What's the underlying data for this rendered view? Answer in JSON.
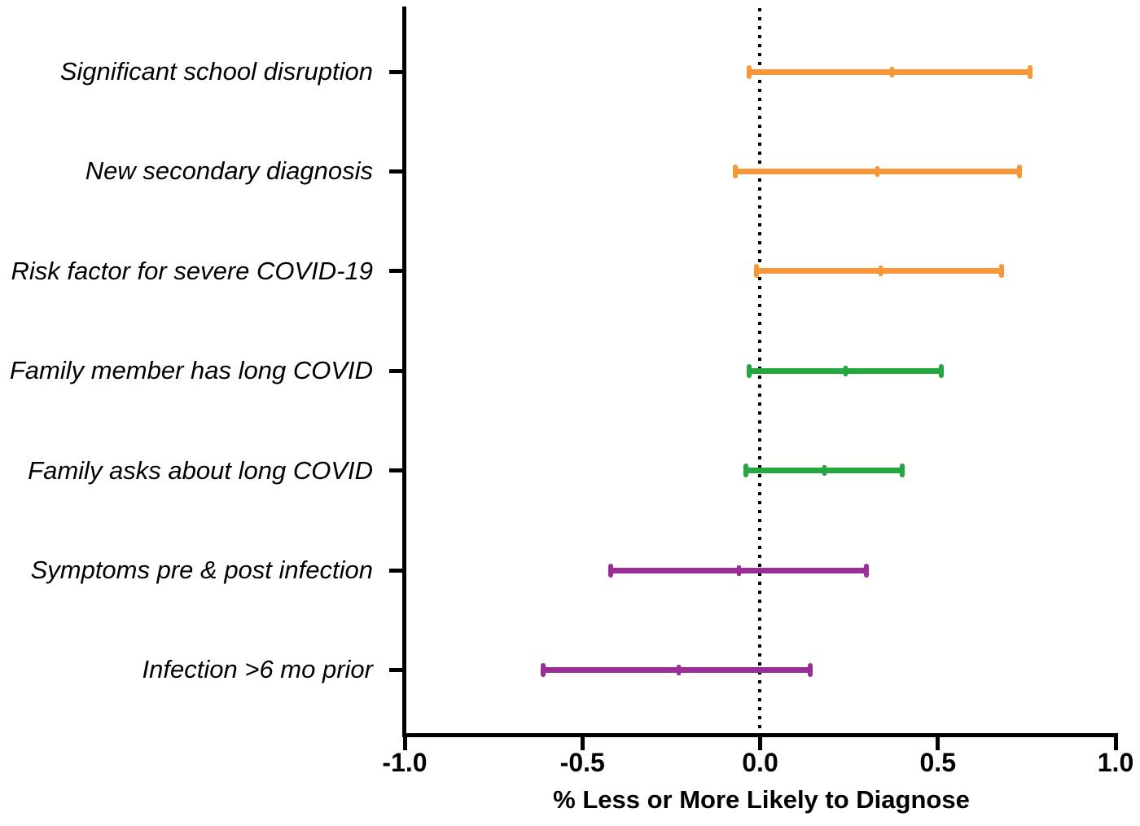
{
  "chart_data": {
    "type": "scatter",
    "subtype": "horizontal-interval-forest-plot",
    "title": "",
    "xlabel": "% Less or More Likely to Diagnose",
    "ylabel": "",
    "xlim": [
      -1.0,
      1.0
    ],
    "xticks": [
      -1.0,
      -0.5,
      0.0,
      0.5,
      1.0
    ],
    "xtick_labels": [
      "-1.0",
      "-0.5",
      "0.0",
      "0.5",
      "1.0"
    ],
    "reference_line_x": 0.0,
    "grid": false,
    "legend": "none",
    "categories": [
      "Significant school disruption",
      "New secondary diagnosis",
      "Risk factor for severe COVID-19",
      "Family member has long COVID",
      "Family asks about long COVID",
      "Symptoms pre & post infection",
      "Infection >6 mo prior"
    ],
    "series": [
      {
        "label": "Significant school disruption",
        "low": -0.03,
        "mid": 0.37,
        "high": 0.76,
        "color": "#F79737"
      },
      {
        "label": "New secondary diagnosis",
        "low": -0.07,
        "mid": 0.33,
        "high": 0.73,
        "color": "#F79737"
      },
      {
        "label": "Risk factor for severe COVID-19",
        "low": -0.01,
        "mid": 0.34,
        "high": 0.68,
        "color": "#F79737"
      },
      {
        "label": "Family member has long COVID",
        "low": -0.03,
        "mid": 0.24,
        "high": 0.51,
        "color": "#22A83E"
      },
      {
        "label": "Family asks about long COVID",
        "low": -0.04,
        "mid": 0.18,
        "high": 0.4,
        "color": "#22A83E"
      },
      {
        "label": "Symptoms pre & post infection",
        "low": -0.42,
        "mid": -0.06,
        "high": 0.3,
        "color": "#9C2D96"
      },
      {
        "label": "Infection >6 mo prior",
        "low": -0.61,
        "mid": -0.23,
        "high": 0.14,
        "color": "#9C2D96"
      }
    ],
    "colors": {
      "orange": "#F79737",
      "green": "#22A83E",
      "purple": "#9C2D96",
      "axis": "#000000",
      "background": "#FFFFFF"
    }
  }
}
